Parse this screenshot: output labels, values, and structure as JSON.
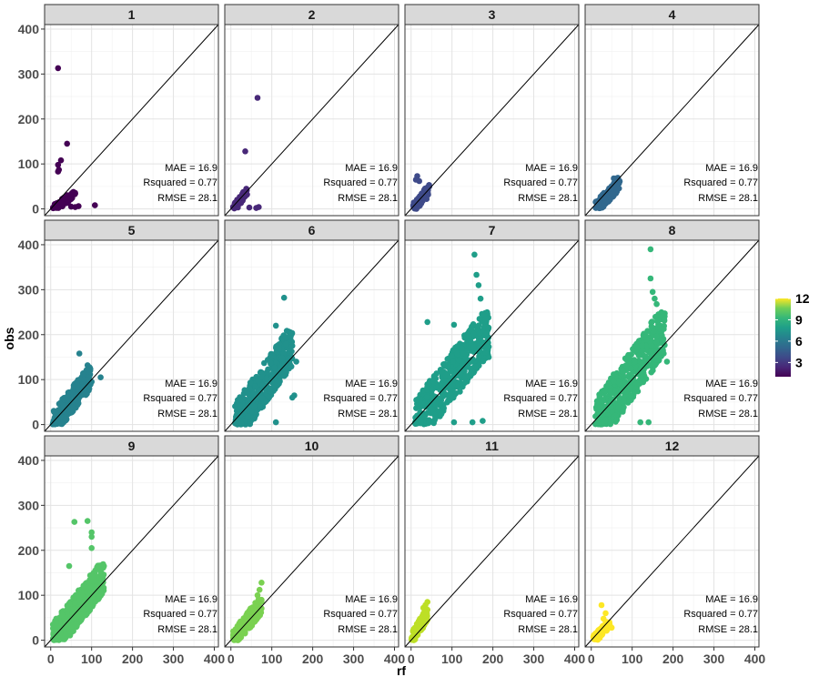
{
  "chart_data": {
    "type": "scatter",
    "facet_by": "month",
    "xlabel": "rf",
    "ylabel": "obs",
    "xlim": [
      -15,
      410
    ],
    "ylim": [
      -15,
      410
    ],
    "x_ticks": [
      "0",
      "100",
      "200",
      "300",
      "400"
    ],
    "y_ticks": [
      "0",
      "100",
      "200",
      "300",
      "400"
    ],
    "reference_line": "y = x",
    "grid": true,
    "legend": {
      "position": "right",
      "colormap": "viridis",
      "range": [
        1,
        12
      ],
      "tick_labels": [
        "3",
        "6",
        "9",
        "12"
      ],
      "tick_values": [
        3,
        6,
        9,
        12
      ]
    },
    "panels": [
      {
        "label": "1",
        "color": "#440154",
        "mae": "MAE = 16.9",
        "rsq": "Rsquared = 0.77",
        "rmse": "RMSE = 28.1",
        "cluster": {
          "xmin": 5,
          "xmax": 60,
          "ymin": 0,
          "ymax": 40,
          "n": 60
        },
        "points": [
          [
            18,
            313
          ],
          [
            40,
            145
          ],
          [
            25,
            108
          ],
          [
            18,
            98
          ],
          [
            20,
            87
          ],
          [
            18,
            83
          ],
          [
            108,
            8
          ],
          [
            68,
            6
          ],
          [
            60,
            4
          ],
          [
            50,
            5
          ],
          [
            30,
            20
          ],
          [
            28,
            12
          ]
        ]
      },
      {
        "label": "2",
        "color": "#482878",
        "mae": "MAE = 16.9",
        "rsq": "Rsquared = 0.77",
        "rmse": "RMSE = 28.1",
        "cluster": {
          "xmin": 5,
          "xmax": 40,
          "ymin": 0,
          "ymax": 45,
          "n": 55
        },
        "points": [
          [
            65,
            247
          ],
          [
            35,
            128
          ],
          [
            68,
            4
          ],
          [
            62,
            2
          ],
          [
            45,
            3
          ],
          [
            25,
            15
          ]
        ]
      },
      {
        "label": "3",
        "color": "#3e4a89",
        "mae": "MAE = 16.9",
        "rsq": "Rsquared = 0.77",
        "rmse": "RMSE = 28.1",
        "cluster": {
          "xmin": 5,
          "xmax": 45,
          "ymin": 0,
          "ymax": 55,
          "n": 70
        },
        "points": [
          [
            15,
            73
          ],
          [
            12,
            65
          ],
          [
            20,
            62
          ],
          [
            38,
            22
          ],
          [
            30,
            30
          ]
        ]
      },
      {
        "label": "4",
        "color": "#31688e",
        "mae": "MAE = 16.9",
        "rsq": "Rsquared = 0.77",
        "rmse": "RMSE = 28.1",
        "cluster": {
          "xmin": 10,
          "xmax": 70,
          "ymin": 0,
          "ymax": 70,
          "n": 110
        },
        "points": [
          [
            55,
            68
          ],
          [
            60,
            62
          ],
          [
            65,
            45
          ],
          [
            30,
            5
          ]
        ]
      },
      {
        "label": "5",
        "color": "#26828e",
        "mae": "MAE = 16.9",
        "rsq": "Rsquared = 0.77",
        "rmse": "RMSE = 28.1",
        "cluster": {
          "xmin": 5,
          "xmax": 100,
          "ymin": 0,
          "ymax": 130,
          "n": 260
        },
        "points": [
          [
            70,
            158
          ],
          [
            90,
            132
          ],
          [
            122,
            105
          ],
          [
            95,
            118
          ],
          [
            100,
            95
          ]
        ]
      },
      {
        "label": "6",
        "color": "#21918c",
        "mae": "MAE = 16.9",
        "rsq": "Rsquared = 0.77",
        "rmse": "RMSE = 28.1",
        "cluster": {
          "xmin": 10,
          "xmax": 150,
          "ymin": 0,
          "ymax": 210,
          "n": 420
        },
        "points": [
          [
            130,
            282
          ],
          [
            110,
            220
          ],
          [
            150,
            175
          ],
          [
            160,
            140
          ],
          [
            155,
            65
          ],
          [
            150,
            60
          ],
          [
            110,
            5
          ]
        ]
      },
      {
        "label": "7",
        "color": "#1f9e89",
        "mae": "MAE = 16.9",
        "rsq": "Rsquared = 0.77",
        "rmse": "RMSE = 28.1",
        "cluster": {
          "xmin": 10,
          "xmax": 190,
          "ymin": 0,
          "ymax": 250,
          "n": 450
        },
        "points": [
          [
            155,
            378
          ],
          [
            160,
            333
          ],
          [
            165,
            310
          ],
          [
            170,
            280
          ],
          [
            105,
            222
          ],
          [
            40,
            228
          ],
          [
            105,
            5
          ],
          [
            150,
            5
          ],
          [
            175,
            8
          ],
          [
            190,
            150
          ]
        ]
      },
      {
        "label": "8",
        "color": "#35b779",
        "mae": "MAE = 16.9",
        "rsq": "Rsquared = 0.77",
        "rmse": "RMSE = 28.1",
        "cluster": {
          "xmin": 10,
          "xmax": 180,
          "ymin": 0,
          "ymax": 250,
          "n": 480
        },
        "points": [
          [
            145,
            390
          ],
          [
            145,
            325
          ],
          [
            155,
            280
          ],
          [
            160,
            268
          ],
          [
            150,
            295
          ],
          [
            185,
            140
          ],
          [
            120,
            5
          ],
          [
            140,
            5
          ]
        ]
      },
      {
        "label": "9",
        "color": "#54c568",
        "mae": "MAE = 16.9",
        "rsq": "Rsquared = 0.77",
        "rmse": "RMSE = 28.1",
        "cluster": {
          "xmin": 5,
          "xmax": 130,
          "ymin": 0,
          "ymax": 170,
          "n": 430
        },
        "points": [
          [
            58,
            263
          ],
          [
            90,
            265
          ],
          [
            100,
            240
          ],
          [
            100,
            230
          ],
          [
            100,
            205
          ],
          [
            45,
            165
          ],
          [
            130,
            165
          ]
        ]
      },
      {
        "label": "10",
        "color": "#7ad151",
        "mae": "MAE = 16.9",
        "rsq": "Rsquared = 0.77",
        "rmse": "RMSE = 28.1",
        "cluster": {
          "xmin": 5,
          "xmax": 75,
          "ymin": 0,
          "ymax": 95,
          "n": 170
        },
        "points": [
          [
            75,
            128
          ],
          [
            70,
            112
          ],
          [
            65,
            100
          ]
        ]
      },
      {
        "label": "11",
        "color": "#bddf26",
        "mae": "MAE = 16.9",
        "rsq": "Rsquared = 0.77",
        "rmse": "RMSE = 28.1",
        "cluster": {
          "xmin": 0,
          "xmax": 40,
          "ymin": 0,
          "ymax": 70,
          "n": 120
        },
        "points": [
          [
            40,
            85
          ],
          [
            35,
            78
          ],
          [
            30,
            72
          ]
        ]
      },
      {
        "label": "12",
        "color": "#fde725",
        "mae": "MAE = 16.9",
        "rsq": "Rsquared = 0.77",
        "rmse": "RMSE = 28.1",
        "cluster": {
          "xmin": 5,
          "xmax": 45,
          "ymin": 0,
          "ymax": 45,
          "n": 90
        },
        "points": [
          [
            25,
            78
          ],
          [
            35,
            60
          ],
          [
            45,
            35
          ],
          [
            50,
            28
          ],
          [
            30,
            48
          ]
        ]
      }
    ]
  }
}
